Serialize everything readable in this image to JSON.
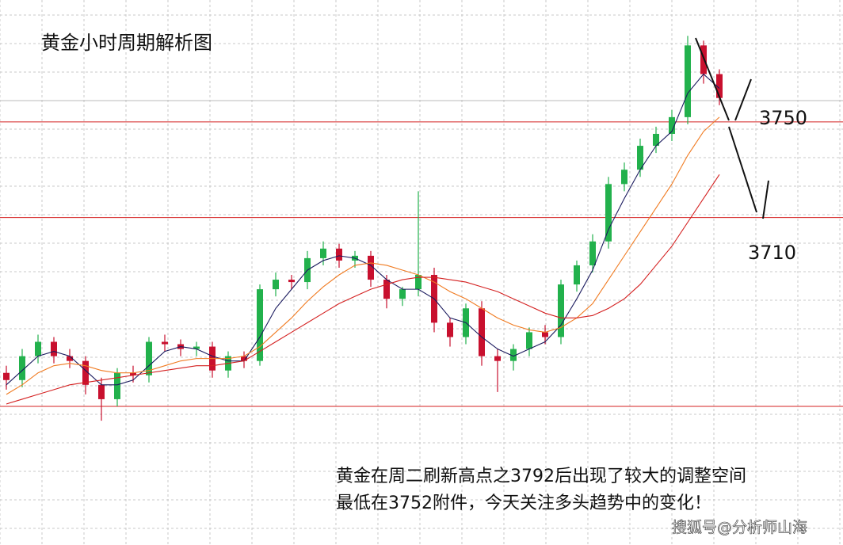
{
  "chart_data": {
    "type": "candlestick",
    "title": "黄金小时周期解析图",
    "annotation": [
      "黄金在周二刷新高点之3792后出现了较大的调整空间",
      "最低在3752附件，今天关注多头趋势中的变化！"
    ],
    "watermark": "搜狐号@分析师山海",
    "ylim": [
      3573,
      3801
    ],
    "hlines": [
      3750,
      3710,
      3631
    ],
    "hline_color": "#d42020",
    "up_color": "#22b14c",
    "down_color": "#c8102e",
    "grid": true,
    "open": [
      3645,
      3642,
      3652,
      3658,
      3652,
      3650,
      3640,
      3634,
      3645,
      3644,
      3658,
      3657,
      3655,
      3656,
      3646,
      3652,
      3650,
      3680,
      3684,
      3683,
      3693,
      3697,
      3692,
      3694,
      3684,
      3676,
      3680,
      3686,
      3666,
      3660,
      3672,
      3652,
      3650,
      3655,
      3662,
      3660,
      3682,
      3690,
      3700,
      3724,
      3730,
      3740,
      3745,
      3752,
      3782,
      3770
    ],
    "high": [
      3648,
      3655,
      3661,
      3660,
      3655,
      3652,
      3643,
      3647,
      3648,
      3660,
      3661,
      3659,
      3658,
      3658,
      3654,
      3654,
      3682,
      3687,
      3686,
      3696,
      3700,
      3699,
      3696,
      3696,
      3686,
      3681,
      3721,
      3689,
      3668,
      3674,
      3675,
      3655,
      3657,
      3664,
      3665,
      3684,
      3692,
      3703,
      3727,
      3733,
      3743,
      3748,
      3755,
      3786,
      3784,
      3772
    ],
    "low": [
      3638,
      3639,
      3649,
      3649,
      3647,
      3636,
      3625,
      3631,
      3641,
      3641,
      3654,
      3652,
      3652,
      3643,
      3643,
      3647,
      3648,
      3677,
      3680,
      3680,
      3690,
      3689,
      3689,
      3681,
      3672,
      3673,
      3677,
      3662,
      3656,
      3657,
      3648,
      3637,
      3646,
      3652,
      3657,
      3657,
      3679,
      3687,
      3697,
      3721,
      3727,
      3737,
      3742,
      3749,
      3766,
      3757
    ],
    "close": [
      3642,
      3652,
      3658,
      3652,
      3650,
      3640,
      3634,
      3645,
      3644,
      3658,
      3657,
      3655,
      3656,
      3646,
      3652,
      3650,
      3680,
      3684,
      3683,
      3693,
      3697,
      3692,
      3694,
      3684,
      3676,
      3680,
      3686,
      3666,
      3660,
      3672,
      3652,
      3650,
      3655,
      3662,
      3660,
      3682,
      3690,
      3700,
      3724,
      3730,
      3740,
      3745,
      3752,
      3782,
      3770,
      3760
    ],
    "series": [
      {
        "color": "#1a1a5e",
        "values": [
          3640,
          3646,
          3652,
          3654,
          3652,
          3646,
          3640,
          3640,
          3642,
          3648,
          3654,
          3656,
          3655,
          3652,
          3650,
          3650,
          3660,
          3672,
          3680,
          3688,
          3692,
          3694,
          3693,
          3690,
          3684,
          3680,
          3680,
          3676,
          3668,
          3666,
          3660,
          3655,
          3652,
          3655,
          3658,
          3665,
          3676,
          3688,
          3705,
          3718,
          3730,
          3740,
          3746,
          3762,
          3770,
          3764
        ]
      },
      {
        "color": "#f07a20",
        "values": [
          3636,
          3640,
          3645,
          3648,
          3649,
          3648,
          3646,
          3645,
          3645,
          3646,
          3648,
          3650,
          3651,
          3651,
          3651,
          3652,
          3656,
          3662,
          3668,
          3675,
          3681,
          3686,
          3690,
          3691,
          3690,
          3688,
          3686,
          3683,
          3679,
          3676,
          3672,
          3668,
          3665,
          3663,
          3662,
          3664,
          3668,
          3674,
          3684,
          3694,
          3704,
          3714,
          3724,
          3736,
          3746,
          3752
        ]
      },
      {
        "color": "#d42020",
        "values": [
          3632,
          3634,
          3636,
          3638,
          3640,
          3641,
          3642,
          3643,
          3644,
          3645,
          3646,
          3647,
          3648,
          3648,
          3649,
          3650,
          3654,
          3658,
          3662,
          3666,
          3670,
          3674,
          3677,
          3680,
          3682,
          3684,
          3685,
          3685,
          3684,
          3683,
          3681,
          3679,
          3676,
          3673,
          3670,
          3668,
          3668,
          3669,
          3672,
          3676,
          3682,
          3690,
          3698,
          3708,
          3718,
          3728
        ]
      }
    ]
  }
}
